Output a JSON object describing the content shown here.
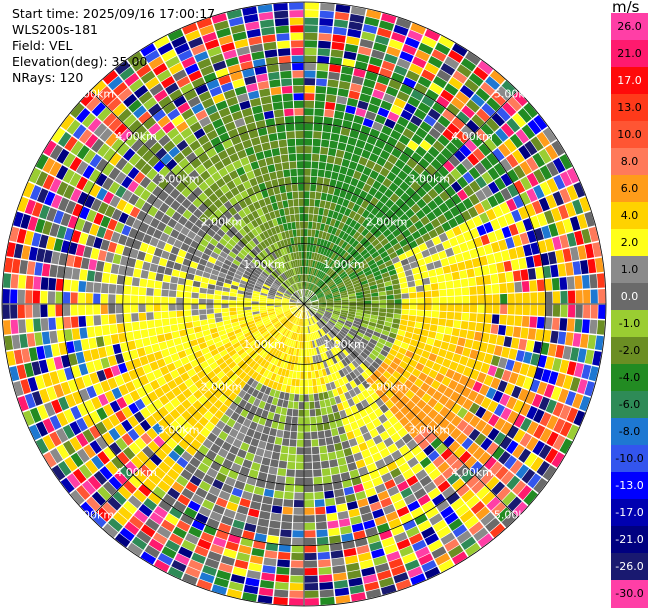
{
  "header": {
    "start_time": "Start time: 2025/09/16 17:00:17",
    "instrument": "WLS200s-181",
    "field": "Field: VEL",
    "elevation": "Elevation(deg): 35.00",
    "nrays": "NRays: 120"
  },
  "colorbar": {
    "unit": "m/s",
    "levels": [
      {
        "label": "26.0",
        "color": "#ff3fa6"
      },
      {
        "label": "21.0",
        "color": "#ff1a6e"
      },
      {
        "label": "17.0",
        "color": "#ff0a0a"
      },
      {
        "label": "13.0",
        "color": "#ff3a1a"
      },
      {
        "label": "10.0",
        "color": "#ff5533"
      },
      {
        "label": "8.0",
        "color": "#ff7a5a"
      },
      {
        "label": "6.0",
        "color": "#ff9c1a"
      },
      {
        "label": "4.0",
        "color": "#ffd200"
      },
      {
        "label": "2.0",
        "color": "#ffff1a"
      },
      {
        "label": "1.0",
        "color": "#8a8a8a"
      },
      {
        "label": "0.0",
        "color": "#6a6a6a"
      },
      {
        "label": "-1.0",
        "color": "#9acd32"
      },
      {
        "label": "-2.0",
        "color": "#6b8e23"
      },
      {
        "label": "-4.0",
        "color": "#228b22"
      },
      {
        "label": "-6.0",
        "color": "#2e8b57"
      },
      {
        "label": "-8.0",
        "color": "#1e78d2"
      },
      {
        "label": "-10.0",
        "color": "#3355ee"
      },
      {
        "label": "-13.0",
        "color": "#0000ff"
      },
      {
        "label": "-17.0",
        "color": "#0000b0"
      },
      {
        "label": "-21.0",
        "color": "#000080"
      },
      {
        "label": "-26.0",
        "color": "#191970"
      },
      {
        "label": "-30.0",
        "color": "#ff3fa6"
      }
    ]
  },
  "chart_data": {
    "type": "heatmap",
    "subtype": "ppi",
    "field": "VEL",
    "unit": "m/s",
    "elevation_deg": 35.0,
    "nrays": 120,
    "range_km": 5.0,
    "range_rings": [
      {
        "label": "1.00km",
        "range_km": 1
      },
      {
        "label": "2.00km",
        "range_km": 2
      },
      {
        "label": "3.00km",
        "range_km": 3
      },
      {
        "label": "4.00km",
        "range_km": 4
      },
      {
        "label": "5.00km",
        "range_km": 5
      }
    ],
    "spokes": 8,
    "grid": true
  }
}
